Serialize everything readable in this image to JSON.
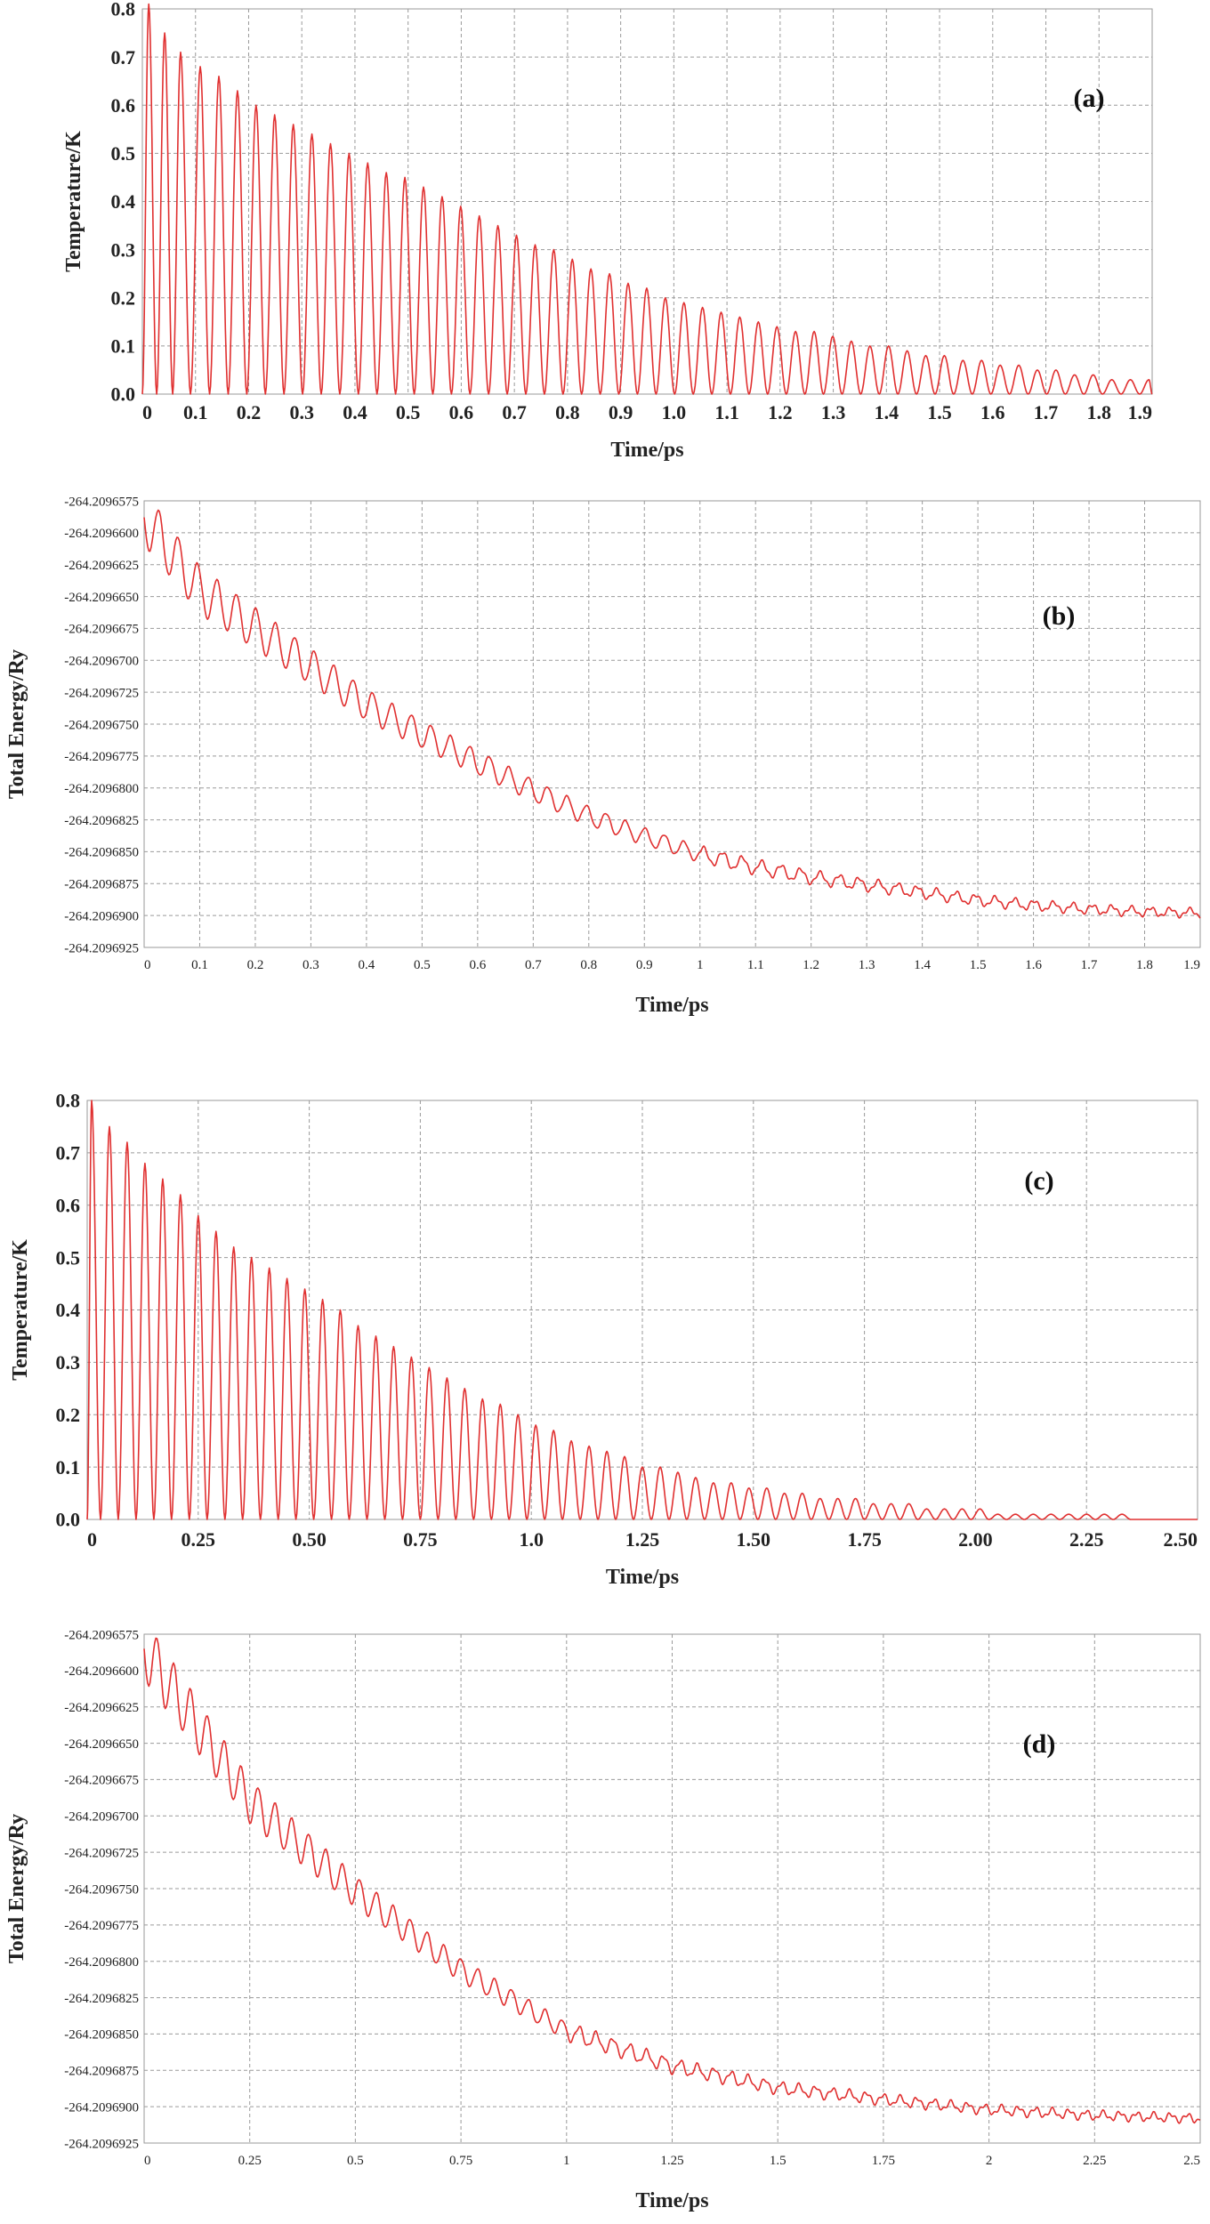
{
  "chart_data": [
    {
      "type": "line",
      "panel_label": "(a)",
      "xlabel": "Time/ps",
      "ylabel": "Temperature/K",
      "xlim": [
        0,
        1.9
      ],
      "ylim": [
        0,
        0.8
      ],
      "x_ticks": [
        "0",
        "0.1",
        "0.2",
        "0.3",
        "0.4",
        "0.5",
        "0.6",
        "0.7",
        "0.8",
        "0.9",
        "1.0",
        "1.1",
        "1.2",
        "1.3",
        "1.4",
        "1.5",
        "1.6",
        "1.7",
        "1.8",
        "1.9"
      ],
      "y_ticks": [
        "0.0",
        "0.1",
        "0.2",
        "0.3",
        "0.4",
        "0.5",
        "0.6",
        "0.7",
        "0.8"
      ],
      "grid": true,
      "color": "#e03030",
      "peaks": {
        "x": [
          0.012,
          0.042,
          0.072,
          0.109,
          0.144,
          0.179,
          0.214,
          0.249,
          0.284,
          0.319,
          0.354,
          0.389,
          0.424,
          0.459,
          0.494,
          0.529,
          0.564,
          0.599,
          0.634,
          0.669,
          0.704,
          0.739,
          0.774,
          0.809,
          0.844,
          0.879,
          0.914,
          0.949,
          0.984,
          1.019,
          1.054,
          1.089,
          1.124,
          1.159,
          1.194,
          1.229,
          1.264,
          1.299,
          1.334,
          1.369,
          1.404,
          1.439,
          1.474,
          1.509,
          1.544,
          1.579,
          1.614,
          1.649,
          1.684,
          1.719,
          1.754,
          1.789,
          1.824,
          1.859,
          1.894
        ],
        "y": [
          0.81,
          0.75,
          0.71,
          0.68,
          0.66,
          0.63,
          0.6,
          0.58,
          0.56,
          0.54,
          0.52,
          0.5,
          0.48,
          0.46,
          0.45,
          0.43,
          0.41,
          0.39,
          0.37,
          0.35,
          0.33,
          0.31,
          0.3,
          0.28,
          0.26,
          0.25,
          0.23,
          0.22,
          0.2,
          0.19,
          0.18,
          0.17,
          0.16,
          0.15,
          0.14,
          0.13,
          0.13,
          0.12,
          0.11,
          0.1,
          0.1,
          0.09,
          0.08,
          0.08,
          0.07,
          0.07,
          0.06,
          0.06,
          0.05,
          0.05,
          0.04,
          0.04,
          0.03,
          0.03,
          0.03
        ]
      }
    },
    {
      "type": "line",
      "panel_label": "(b)",
      "xlabel": "Time/ps",
      "ylabel": "Total Energy/Ry",
      "xlim": [
        0,
        1.9
      ],
      "ylim": [
        -264.2096925,
        -264.2096575
      ],
      "x_ticks": [
        "0",
        "0.1",
        "0.2",
        "0.3",
        "0.4",
        "0.5",
        "0.6",
        "0.7",
        "0.8",
        "0.9",
        "1",
        "1.1",
        "1.2",
        "1.3",
        "1.4",
        "1.5",
        "1.6",
        "1.7",
        "1.8",
        "1.9"
      ],
      "y_ticks": [
        "-264.2096575",
        "-264.2096600",
        "-264.2096625",
        "-264.2096650",
        "-264.2096675",
        "-264.2096700",
        "-264.2096725",
        "-264.2096750",
        "-264.2096775",
        "-264.2096800",
        "-264.2096825",
        "-264.2096850",
        "-264.2096875",
        "-264.2096900",
        "-264.2096925"
      ],
      "grid": true,
      "color": "#e03030",
      "x": [
        0,
        0.1,
        0.2,
        0.3,
        0.4,
        0.5,
        0.6,
        0.7,
        0.8,
        0.9,
        1.0,
        1.1,
        1.2,
        1.3,
        1.4,
        1.5,
        1.6,
        1.7,
        1.8,
        1.9
      ],
      "y": [
        -264.2096588,
        -264.2096645,
        -264.2096675,
        -264.2096705,
        -264.2096735,
        -264.2096758,
        -264.209678,
        -264.2096802,
        -264.2096822,
        -264.2096838,
        -264.2096852,
        -264.2096862,
        -264.209687,
        -264.2096876,
        -264.2096882,
        -264.2096888,
        -264.2096892,
        -264.2096895,
        -264.2096897,
        -264.2096898
      ]
    },
    {
      "type": "line",
      "panel_label": "(c)",
      "xlabel": "Time/ps",
      "ylabel": "Temperature/K",
      "xlim": [
        0,
        2.5
      ],
      "ylim": [
        0,
        0.8
      ],
      "x_ticks": [
        "0",
        "0.25",
        "0.50",
        "0.75",
        "1.0",
        "1.25",
        "1.50",
        "1.75",
        "2.00",
        "2.25",
        "2.50"
      ],
      "y_ticks": [
        "0.0",
        "0.1",
        "0.2",
        "0.3",
        "0.4",
        "0.5",
        "0.6",
        "0.7",
        "0.8"
      ],
      "grid": true,
      "color": "#e03030",
      "peaks": {
        "x": [
          0.01,
          0.05,
          0.09,
          0.13,
          0.17,
          0.21,
          0.25,
          0.29,
          0.33,
          0.37,
          0.41,
          0.45,
          0.49,
          0.53,
          0.57,
          0.61,
          0.65,
          0.69,
          0.73,
          0.77,
          0.81,
          0.85,
          0.89,
          0.93,
          0.97,
          1.01,
          1.05,
          1.09,
          1.13,
          1.17,
          1.21,
          1.25,
          1.29,
          1.33,
          1.37,
          1.41,
          1.45,
          1.49,
          1.53,
          1.57,
          1.61,
          1.65,
          1.69,
          1.73,
          1.77,
          1.81,
          1.85,
          1.89,
          1.93,
          1.97,
          2.01,
          2.05,
          2.09,
          2.13,
          2.17,
          2.21,
          2.25,
          2.29,
          2.33,
          2.37,
          2.41,
          2.45,
          2.49
        ],
        "y": [
          0.8,
          0.75,
          0.72,
          0.68,
          0.65,
          0.62,
          0.58,
          0.55,
          0.52,
          0.5,
          0.48,
          0.46,
          0.44,
          0.42,
          0.4,
          0.37,
          0.35,
          0.33,
          0.31,
          0.29,
          0.27,
          0.25,
          0.23,
          0.22,
          0.2,
          0.18,
          0.17,
          0.15,
          0.14,
          0.13,
          0.12,
          0.1,
          0.1,
          0.09,
          0.08,
          0.07,
          0.07,
          0.06,
          0.06,
          0.05,
          0.05,
          0.04,
          0.04,
          0.04,
          0.03,
          0.03,
          0.03,
          0.02,
          0.02,
          0.02,
          0.02,
          0.01,
          0.01,
          0.01,
          0.01,
          0.01,
          0.01,
          0.01,
          0.01,
          0.0,
          0.0,
          0.0,
          0.0
        ]
      }
    },
    {
      "type": "line",
      "panel_label": "(d)",
      "xlabel": "Time/ps",
      "ylabel": "Total Energy/Ry",
      "xlim": [
        0,
        2.5
      ],
      "ylim": [
        -264.2096925,
        -264.2096575
      ],
      "x_ticks": [
        "0",
        "0.25",
        "0.5",
        "0.75",
        "1",
        "1.25",
        "1.5",
        "1.75",
        "2",
        "2.25",
        "2.5"
      ],
      "y_ticks": [
        "-264.2096575",
        "-264.2096600",
        "-264.2096625",
        "-264.2096650",
        "-264.2096675",
        "-264.2096700",
        "-264.2096725",
        "-264.2096750",
        "-264.2096775",
        "-264.2096800",
        "-264.2096825",
        "-264.2096850",
        "-264.2096875",
        "-264.2096900",
        "-264.2096925"
      ],
      "grid": true,
      "color": "#e03030",
      "x": [
        0,
        0.25,
        0.5,
        0.75,
        1.0,
        1.25,
        1.5,
        1.75,
        2.0,
        2.25,
        2.5
      ],
      "y": [
        -264.2096585,
        -264.209669,
        -264.2096752,
        -264.2096806,
        -264.2096848,
        -264.2096872,
        -264.2096887,
        -264.2096895,
        -264.2096902,
        -264.2096906,
        -264.2096908
      ]
    }
  ]
}
